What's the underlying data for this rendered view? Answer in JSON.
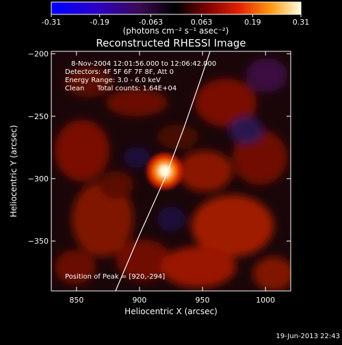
{
  "colorbar": {
    "ticks": [
      "-0.31",
      "-0.19",
      "-0.063",
      "0.063",
      "0.19",
      "0.31"
    ],
    "tick_values": [
      -0.31,
      -0.19,
      -0.063,
      0.063,
      0.19,
      0.31
    ],
    "range": [
      -0.31,
      0.31
    ],
    "unit_label": "(photons cm⁻² s⁻¹ asec⁻²)"
  },
  "chart_data": {
    "type": "heatmap",
    "title": "Reconstructed RHESSI Image",
    "xlabel": "Heliocentric X (arcsec)",
    "ylabel": "Heliocentric Y (arcsec)",
    "xlim": [
      830,
      1020
    ],
    "ylim": [
      -390,
      -198
    ],
    "x_ticks": [
      850,
      900,
      950,
      1000
    ],
    "y_ticks": [
      -200,
      -250,
      -300,
      -350
    ],
    "x_tick_labels": [
      "850",
      "900",
      "950",
      "1000"
    ],
    "y_tick_labels": [
      "−200",
      "−250",
      "−300",
      "−350"
    ],
    "peak": {
      "x": 920,
      "y": -294,
      "value": 0.31
    },
    "limb_curve": [
      [
        881,
        -390
      ],
      [
        900,
        -345
      ],
      [
        920,
        -300
      ],
      [
        935,
        -260
      ],
      [
        947,
        -225
      ],
      [
        956,
        -198
      ]
    ],
    "annotations": {
      "time": "8-Nov-2004 12:01:56.000 to 12:06:42.000",
      "detectors": "Detectors: 4F 5F 6F 7F 8F, Att 0",
      "energy": "Energy Range: 3.0 - 6.0 keV",
      "clean_label": "Clean",
      "counts": "Total counts: 1.64E+04",
      "peak_position": "Position of Peak = [920,-294]"
    }
  },
  "footer": {
    "date": "19-Jun-2013 22:43"
  },
  "colors": {
    "background": "#000000",
    "text": "#ffffff"
  }
}
